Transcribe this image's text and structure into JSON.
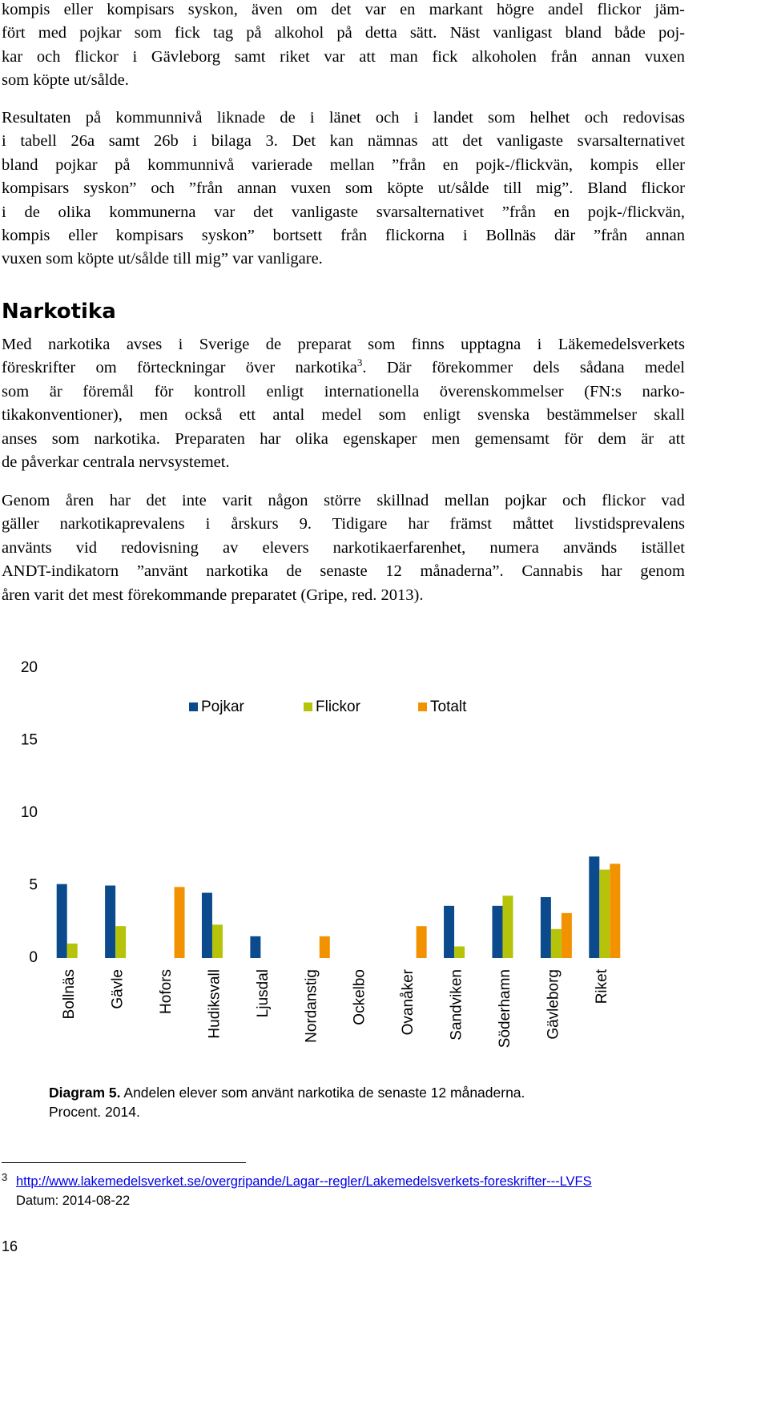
{
  "intro": {
    "paragraphs": [
      {
        "lines": [
          "kompis eller kompisars syskon, även om det var en markant högre andel flickor jäm-",
          "fört med pojkar som fick tag på alkohol på detta sätt. Näst vanligast bland både poj-",
          "kar och flickor i Gävleborg samt riket var att man fick alkoholen från annan vuxen",
          "som köpte ut/sålde."
        ]
      },
      {
        "lines": [
          "Resultaten på kommunnivå liknade de i länet och i landet som helhet och redovisas",
          "i tabell 26a samt 26b i bilaga 3. Det kan nämnas att det vanligaste svarsalternativet",
          "bland pojkar på kommunnivå varierade mellan ”från en pojk-/flickvän, kompis eller",
          "kompisars syskon” och ”från annan vuxen som köpte ut/sålde till mig”. Bland flickor",
          "i de olika kommunerna var det vanligaste svarsalternativet ”från en pojk-/flickvän,",
          "kompis eller kompisars syskon” bortsett från flickorna i Bollnäs där ”från annan",
          "vuxen som köpte ut/sålde till mig” var vanligare."
        ]
      }
    ]
  },
  "section": {
    "heading": "Narkotika",
    "paragraphs": [
      {
        "lines": [
          "Med narkotika avses i Sverige de preparat som finns upptagna i Läkemedelsverkets",
          {
            "before": "föreskrifter om förteckningar över narkotika",
            "sup": "3",
            "after": ". Där förekommer dels sådana medel"
          },
          "som är föremål för kontroll enligt internationella överenskommelser (FN:s narko-",
          "tikakonventioner), men också ett antal medel som enligt svenska bestämmelser skall",
          "anses som narkotika. Preparaten har olika egenskaper men gemensamt för dem är att",
          "de påverkar centrala nervsystemet."
        ]
      },
      {
        "lines": [
          "Genom åren har det inte varit någon större skillnad mellan pojkar och flickor vad",
          "gäller narkotikaprevalens i årskurs 9. Tidigare har främst måttet livstidsprevalens",
          "använts vid redovisning av elevers narkotikaerfarenhet, numera används istället",
          "ANDT-indikatorn ”använt narkotika de senaste 12 månaderna”. Cannabis har genom",
          "åren varit det mest förekommande preparatet (Gripe, red. 2013)."
        ]
      }
    ]
  },
  "chart_data": {
    "type": "bar",
    "categories": [
      "Bollnäs",
      "Gävle",
      "Hofors",
      "Hudiksvall",
      "Ljusdal",
      "Nordanstig",
      "Ockelbo",
      "Ovanåker",
      "Sandviken",
      "Söderhamn",
      "Gävleborg",
      "Riket"
    ],
    "series": [
      {
        "name": "Pojkar",
        "color": "#0b4a8c",
        "values": [
          5.1,
          5.0,
          null,
          4.5,
          1.5,
          null,
          null,
          null,
          3.6,
          3.6,
          4.2,
          7.0
        ]
      },
      {
        "name": "Flickor",
        "color": "#b5c40a",
        "values": [
          1.0,
          2.2,
          null,
          2.3,
          null,
          null,
          null,
          null,
          0.8,
          4.3,
          2.0,
          6.1
        ]
      },
      {
        "name": "Totalt",
        "color": "#f39200",
        "values": [
          null,
          null,
          4.9,
          null,
          null,
          1.5,
          null,
          2.2,
          null,
          null,
          3.1,
          6.5
        ]
      }
    ],
    "ylim": [
      0,
      20
    ],
    "yticks": [
      0,
      5,
      10,
      15,
      20
    ],
    "grid": false,
    "legend": "top"
  },
  "caption": {
    "label": "Diagram 5.",
    "lines": [
      "Andelen elever som använt narkotika de senaste 12 månaderna.",
      "Procent. 2014."
    ]
  },
  "footnote": {
    "number": "3",
    "url": "http://www.lakemedelsverket.se/overgripande/Lagar--regler/Lakemedelsverkets-foreskrifter---LVFS",
    "date": "Datum: 2014-08-22"
  },
  "page_number": "16"
}
